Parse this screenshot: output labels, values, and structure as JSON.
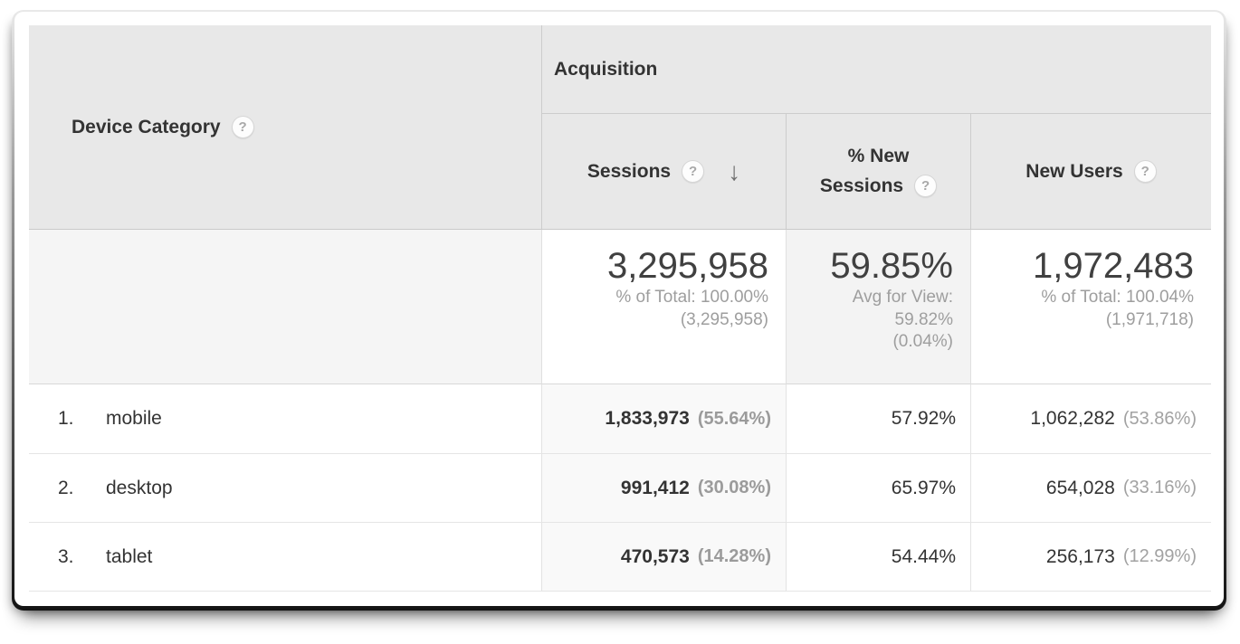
{
  "table": {
    "dimension_header": {
      "label": "Device Category"
    },
    "group_header": {
      "label": "Acquisition"
    },
    "columns": {
      "sessions": {
        "label": "Sessions",
        "sort_state": "descending"
      },
      "pct_new_sessions": {
        "line1": "% New",
        "line2": "Sessions"
      },
      "new_users": {
        "label": "New Users"
      }
    },
    "icons": {
      "help": "?",
      "sort_descending": "↓"
    },
    "totals": {
      "sessions": {
        "value": "3,295,958",
        "detail1": "% of Total: 100.00%",
        "detail2": "(3,295,958)"
      },
      "pct_new_sessions": {
        "value": "59.85%",
        "detail1": "Avg for View:",
        "detail2": "59.82%",
        "detail3": "(0.04%)"
      },
      "new_users": {
        "value": "1,972,483",
        "detail1": "% of Total: 100.04%",
        "detail2": "(1,971,718)"
      }
    },
    "rows": [
      {
        "index": "1.",
        "label": "mobile",
        "sessions": "1,833,973",
        "sessions_pct": "(55.64%)",
        "pct_new_sessions": "57.92%",
        "new_users": "1,062,282",
        "new_users_pct": "(53.86%)"
      },
      {
        "index": "2.",
        "label": "desktop",
        "sessions": "991,412",
        "sessions_pct": "(30.08%)",
        "pct_new_sessions": "65.97%",
        "new_users": "654,028",
        "new_users_pct": "(33.16%)"
      },
      {
        "index": "3.",
        "label": "tablet",
        "sessions": "470,573",
        "sessions_pct": "(14.28%)",
        "pct_new_sessions": "54.44%",
        "new_users": "256,173",
        "new_users_pct": "(12.99%)"
      }
    ]
  },
  "colors": {
    "header_bg": "#e8e8e8",
    "sorted_column_bg": "#f9f9f9",
    "totals_shaded_bg": "#f3f3f3",
    "totals_dimension_bg": "#f5f5f5",
    "text_dark": "#333333",
    "text_gray": "#9e9e9e",
    "border_strong": "#c9c9c9",
    "border_light": "#e3e3e3"
  }
}
